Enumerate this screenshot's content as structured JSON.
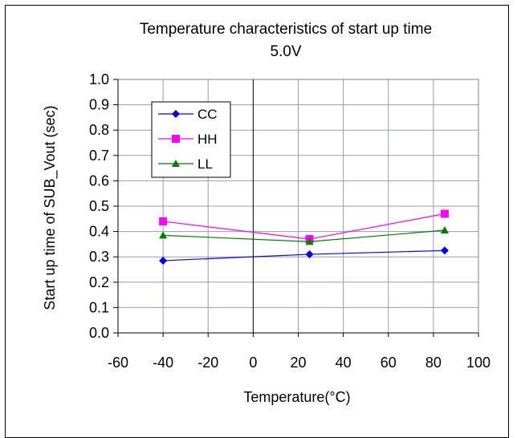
{
  "chart_data": {
    "type": "line",
    "title": "Temperature characteristics of  start up time",
    "subtitle": "5.0V",
    "xlabel": "Temperature(°C)",
    "ylabel": "Start up time of  SUB_Vout (sec)",
    "xlim": [
      -60,
      100
    ],
    "ylim": [
      0.0,
      1.0
    ],
    "x_ticks": [
      "-60",
      "-40",
      "-20",
      "0",
      "20",
      "40",
      "60",
      "80",
      "100"
    ],
    "y_ticks": [
      "0.0",
      "0.1",
      "0.2",
      "0.3",
      "0.4",
      "0.5",
      "0.6",
      "0.7",
      "0.8",
      "0.9",
      "1.0"
    ],
    "grid": true,
    "legend_position": "top-left",
    "x": [
      -40,
      25,
      85
    ],
    "series": [
      {
        "name": "CC",
        "values": [
          0.285,
          0.31,
          0.325
        ],
        "color": "#0000FF",
        "marker": "diamond"
      },
      {
        "name": "HH",
        "values": [
          0.44,
          0.37,
          0.47
        ],
        "color": "#FF00FF",
        "marker": "square"
      },
      {
        "name": "LL",
        "values": [
          0.385,
          0.36,
          0.405
        ],
        "color": "#008000",
        "marker": "triangle"
      }
    ]
  }
}
